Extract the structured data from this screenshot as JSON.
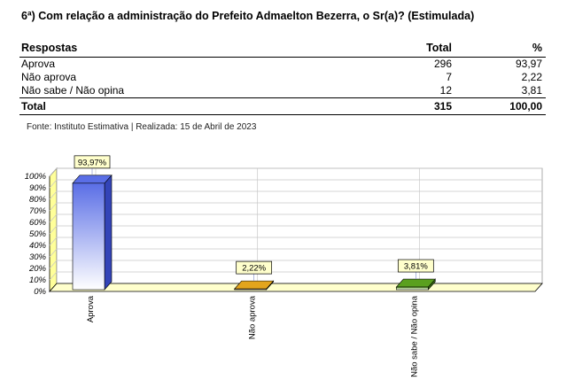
{
  "title": "6ª) Com relação a administração do Prefeito Admaelton Bezerra, o Sr(a)? (Estimulada)",
  "table": {
    "headers": [
      "Respostas",
      "Total",
      "%"
    ],
    "rows": [
      {
        "label": "Aprova",
        "total": "296",
        "pct": "93,97"
      },
      {
        "label": "Não aprova",
        "total": "7",
        "pct": "2,22"
      },
      {
        "label": "Não sabe / Não opina",
        "total": "12",
        "pct": "3,81"
      }
    ],
    "total_row": {
      "label": "Total",
      "total": "315",
      "pct": "100,00"
    }
  },
  "source": "Fonte: Instituto Estimativa | Realizada: 15 de Abril de 2023",
  "chart_data": {
    "type": "bar",
    "categories": [
      "Aprova",
      "Não aprova",
      "Não sabe / Não opina"
    ],
    "values": [
      93.97,
      2.22,
      3.81
    ],
    "data_labels": [
      "93,97%",
      "2,22%",
      "3,81%"
    ],
    "ylim": [
      0,
      100
    ],
    "yticks": [
      "0%",
      "10%",
      "20%",
      "30%",
      "40%",
      "50%",
      "60%",
      "70%",
      "80%",
      "90%",
      "100%"
    ],
    "grid": true,
    "legend": "none",
    "colors": {
      "bars": [
        "#5a6ee6",
        "#e3a51c",
        "#5aa01e"
      ],
      "bar_sides": [
        "#3344b8",
        "#a8780e",
        "#3c7212"
      ],
      "wall": "#ffff99",
      "floor": "#ffffcc",
      "grid": "#c8c8c8"
    }
  }
}
